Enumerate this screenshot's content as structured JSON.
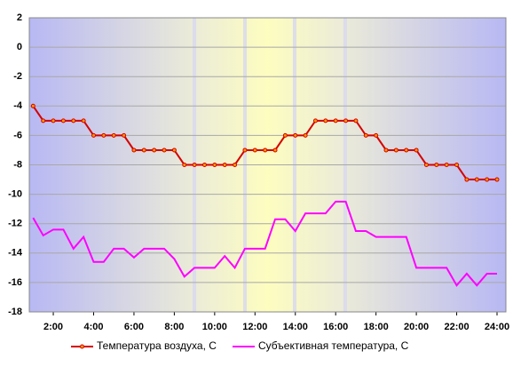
{
  "chart_data": {
    "type": "line",
    "x": [
      1,
      1.5,
      2,
      2.5,
      3,
      3.5,
      4,
      4.5,
      5,
      5.5,
      6,
      6.5,
      7,
      7.5,
      8,
      8.5,
      9,
      9.5,
      10,
      10.5,
      11,
      11.5,
      12,
      12.5,
      13,
      13.5,
      14,
      14.5,
      15,
      15.5,
      16,
      16.5,
      17,
      17.5,
      18,
      18.5,
      19,
      19.5,
      20,
      20.5,
      21,
      21.5,
      22,
      22.5,
      23,
      23.5,
      24
    ],
    "series": [
      {
        "name": "Температура воздуха, С",
        "color": "#d40000",
        "markers": true,
        "values": [
          -4,
          -5,
          -5,
          -5,
          -5,
          -5,
          -6,
          -6,
          -6,
          -6,
          -7,
          -7,
          -7,
          -7,
          -7,
          -8,
          -8,
          -8,
          -8,
          -8,
          -8,
          -7,
          -7,
          -7,
          -7,
          -6,
          -6,
          -6,
          -5,
          -5,
          -5,
          -5,
          -5,
          -6,
          -6,
          -7,
          -7,
          -7,
          -7,
          -8,
          -8,
          -8,
          -8,
          -9,
          -9,
          -9,
          -9
        ]
      },
      {
        "name": "Субъективная температура, С",
        "color": "#ff00ff",
        "markers": false,
        "values": [
          -11.6,
          -12.8,
          -12.4,
          -12.4,
          -13.7,
          -12.9,
          -14.6,
          -14.6,
          -13.7,
          -13.7,
          -14.3,
          -13.7,
          -13.7,
          -13.7,
          -14.4,
          -15.6,
          -15,
          -15,
          -15,
          -14.2,
          -15,
          -13.7,
          -13.7,
          -13.7,
          -11.7,
          -11.7,
          -12.5,
          -11.3,
          -11.3,
          -11.3,
          -10.5,
          -10.5,
          -12.5,
          -12.5,
          -12.9,
          -12.9,
          -12.9,
          -12.9,
          -15,
          -15,
          -15,
          -15,
          -16.2,
          -15.4,
          -16.2,
          -15.4,
          -15.4
        ]
      }
    ],
    "xlim": [
      0.81,
      24.44
    ],
    "xticks": [
      {
        "value": 2,
        "label": "2:00"
      },
      {
        "value": 4,
        "label": "4:00"
      },
      {
        "value": 6,
        "label": "6:00"
      },
      {
        "value": 8,
        "label": "8:00"
      },
      {
        "value": 10,
        "label": "10:00"
      },
      {
        "value": 12,
        "label": "12:00"
      },
      {
        "value": 14,
        "label": "14:00"
      },
      {
        "value": 16,
        "label": "16:00"
      },
      {
        "value": 18,
        "label": "18:00"
      },
      {
        "value": 20,
        "label": "20:00"
      },
      {
        "value": 22,
        "label": "22:00"
      },
      {
        "value": 24,
        "label": "24:00"
      }
    ],
    "ylim": [
      -18,
      2
    ],
    "yticks": [
      -18,
      -16,
      -14,
      -12,
      -10,
      -8,
      -6,
      -4,
      -2,
      0,
      2
    ],
    "grid": true
  }
}
